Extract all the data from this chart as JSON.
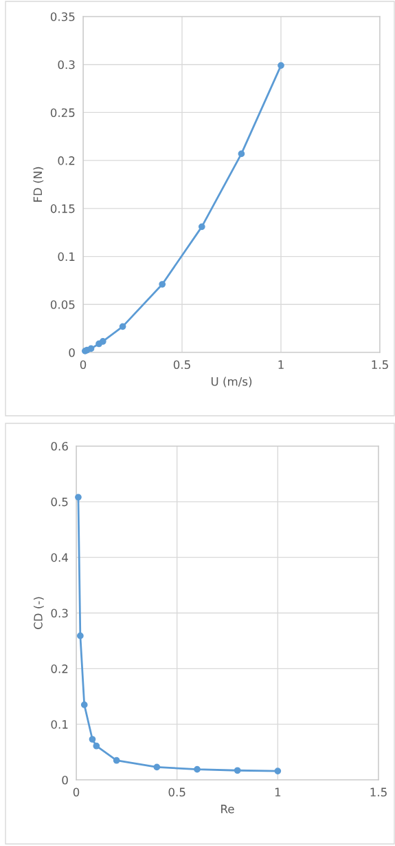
{
  "chart_data": [
    {
      "type": "line",
      "xlabel": "U (m/s)",
      "ylabel": "FD (N)",
      "marker": "circle",
      "line_style": "solid",
      "grid": true,
      "legend": false,
      "xlim": [
        0,
        1.5
      ],
      "xticks": [
        0,
        0.5,
        1,
        1.5
      ],
      "ylim": [
        0,
        0.35
      ],
      "yticks": [
        0,
        0.05,
        0.1,
        0.15,
        0.2,
        0.25,
        0.3,
        0.35
      ],
      "series": [
        {
          "color": "#5b9bd5",
          "x": [
            0.01,
            0.02,
            0.04,
            0.08,
            0.1,
            0.2,
            0.4,
            0.6,
            0.8,
            1.0
          ],
          "values": [
            0.0015,
            0.0025,
            0.004,
            0.009,
            0.0115,
            0.027,
            0.071,
            0.131,
            0.207,
            0.299
          ]
        }
      ]
    },
    {
      "type": "line",
      "xlabel": "Re",
      "ylabel": "CD (-)",
      "marker": "circle",
      "line_style": "solid",
      "grid": true,
      "legend": false,
      "xlim": [
        0,
        1.5
      ],
      "xticks": [
        0,
        0.5,
        1,
        1.5
      ],
      "ylim": [
        0,
        0.6
      ],
      "yticks": [
        0,
        0.1,
        0.2,
        0.3,
        0.4,
        0.5,
        0.6
      ],
      "series": [
        {
          "color": "#5b9bd5",
          "x": [
            0.01,
            0.02,
            0.04,
            0.08,
            0.1,
            0.2,
            0.4,
            0.6,
            0.8,
            1.0
          ],
          "values": [
            0.508,
            0.259,
            0.135,
            0.073,
            0.061,
            0.035,
            0.023,
            0.019,
            0.017,
            0.016
          ]
        }
      ]
    }
  ]
}
